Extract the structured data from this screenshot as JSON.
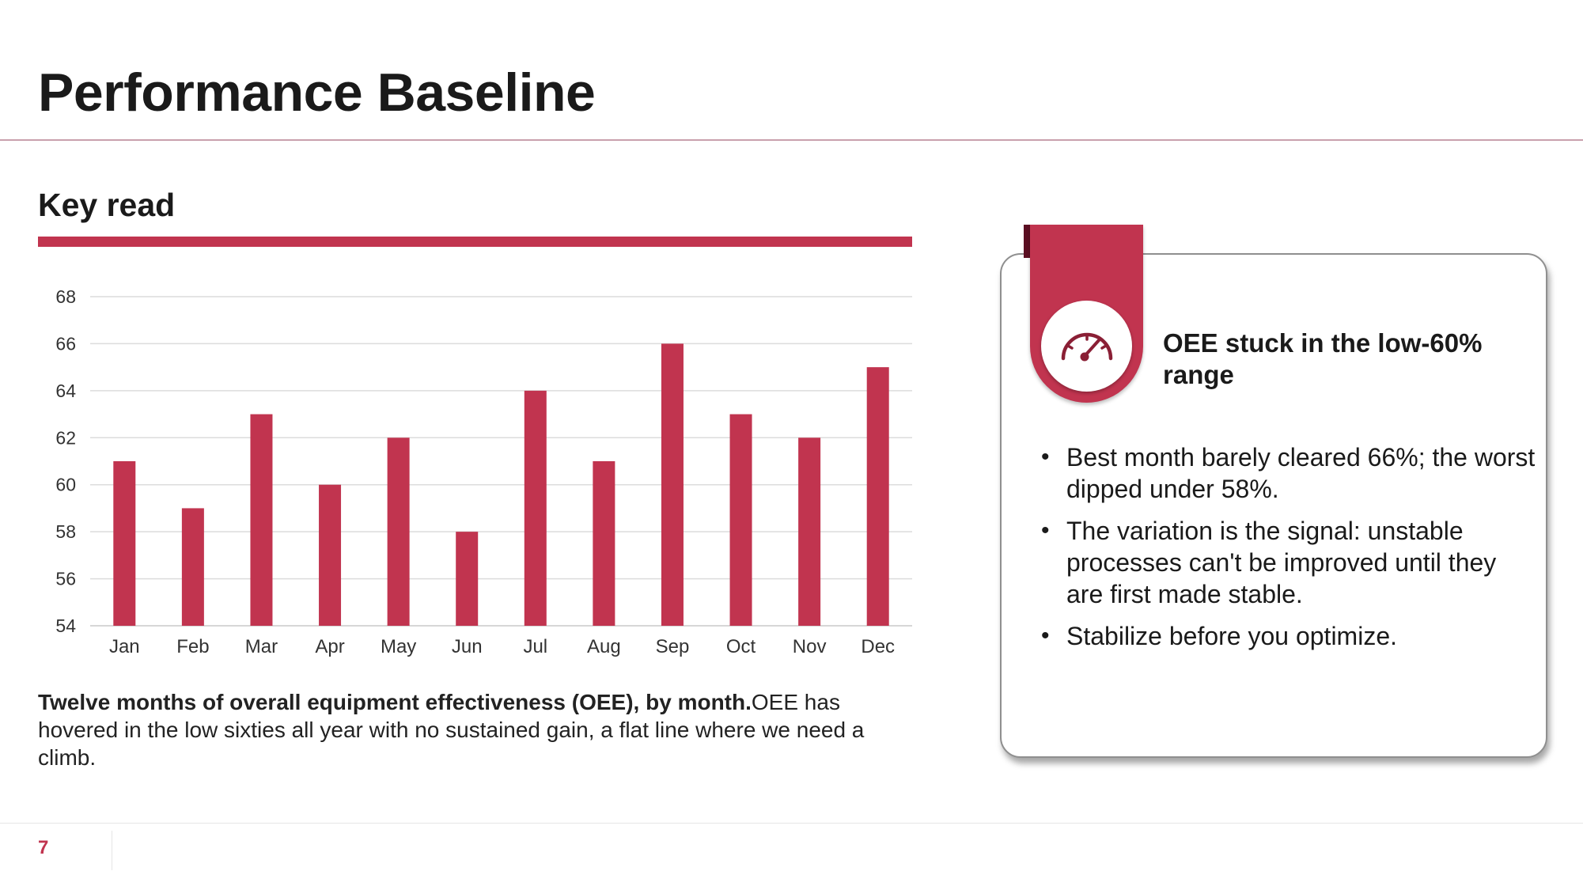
{
  "slide": {
    "title": "Performance Baseline",
    "page_number": "7"
  },
  "section": {
    "heading": "Key read"
  },
  "caption": {
    "lead": "Twelve months of overall equipment effectiveness (OEE), by month.",
    "body": "OEE has hovered in the low sixties all year with no sustained gain, a flat line where we need a climb."
  },
  "callout": {
    "icon": "gauge-icon",
    "title": "OEE stuck in the low-60% range",
    "bullets": [
      "Best month barely cleared 66%; the worst dipped under 58%.",
      "The variation is the signal: unstable processes can't be improved until they are first made stable.",
      "Stabilize before you optimize."
    ]
  },
  "colors": {
    "accent": "#c1344f",
    "accent_dark": "#5c0f22",
    "gridline": "#dcdcdc"
  },
  "chart_data": {
    "type": "bar",
    "categories": [
      "Jan",
      "Feb",
      "Mar",
      "Apr",
      "May",
      "Jun",
      "Jul",
      "Aug",
      "Sep",
      "Oct",
      "Nov",
      "Dec"
    ],
    "values": [
      61,
      59,
      63,
      60,
      62,
      58,
      64,
      61,
      66,
      63,
      62,
      65
    ],
    "title": "",
    "xlabel": "",
    "ylabel": "",
    "ylim": [
      54,
      68
    ],
    "yticks": [
      54,
      56,
      58,
      60,
      62,
      64,
      66,
      68
    ],
    "grid": true,
    "legend": "none"
  }
}
